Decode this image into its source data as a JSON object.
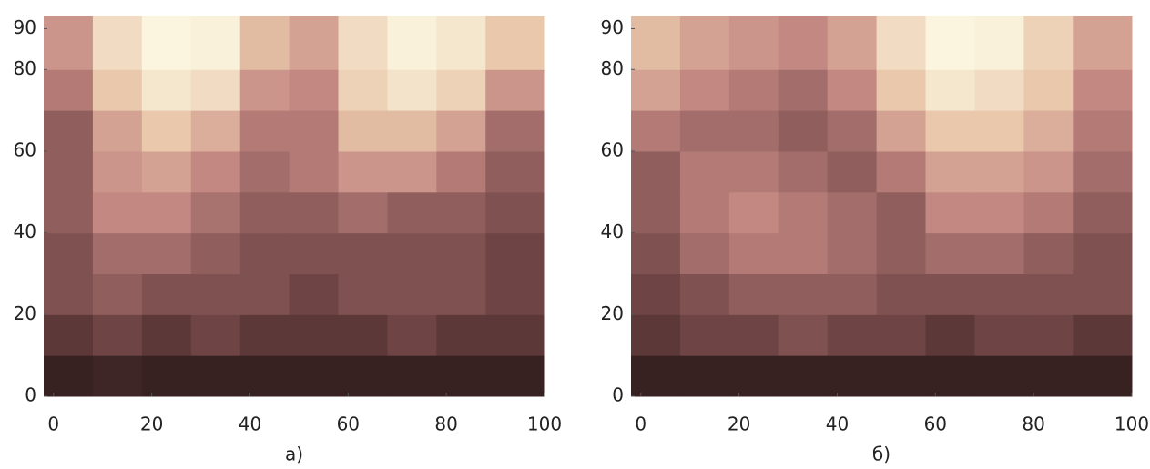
{
  "chart_data": [
    {
      "type": "heatmap",
      "xlabel": "а)",
      "x": [
        3,
        13,
        23,
        33,
        43,
        53,
        63,
        73,
        83,
        93
      ],
      "y": [
        5,
        15,
        25,
        35,
        45,
        55,
        65,
        75,
        85
      ],
      "z": [
        [
          0.1,
          0.12,
          0.1,
          0.1,
          0.1,
          0.1,
          0.1,
          0.1,
          0.1,
          0.1
        ],
        [
          0.2,
          0.25,
          0.2,
          0.25,
          0.2,
          0.2,
          0.2,
          0.25,
          0.2,
          0.2
        ],
        [
          0.3,
          0.35,
          0.3,
          0.3,
          0.3,
          0.25,
          0.3,
          0.3,
          0.3,
          0.25
        ],
        [
          0.3,
          0.4,
          0.4,
          0.35,
          0.3,
          0.3,
          0.3,
          0.3,
          0.3,
          0.25
        ],
        [
          0.35,
          0.5,
          0.5,
          0.42,
          0.35,
          0.35,
          0.4,
          0.35,
          0.35,
          0.3
        ],
        [
          0.35,
          0.55,
          0.6,
          0.5,
          0.4,
          0.45,
          0.55,
          0.55,
          0.45,
          0.35
        ],
        [
          0.35,
          0.6,
          0.75,
          0.65,
          0.45,
          0.45,
          0.7,
          0.7,
          0.6,
          0.4
        ],
        [
          0.45,
          0.75,
          0.9,
          0.85,
          0.55,
          0.5,
          0.8,
          0.88,
          0.8,
          0.55
        ],
        [
          0.55,
          0.85,
          0.97,
          0.95,
          0.7,
          0.6,
          0.85,
          0.95,
          0.9,
          0.75
        ]
      ],
      "colormap": [
        "#140a0a",
        "#6e4444",
        "#c48883",
        "#e9c8ab",
        "#fdfbe6"
      ],
      "xlim": [
        -2,
        100
      ],
      "ylim": [
        0,
        93
      ],
      "xticks": [
        0,
        20,
        40,
        60,
        80,
        100
      ],
      "yticks": [
        0,
        20,
        40,
        60,
        80,
        90
      ]
    },
    {
      "type": "heatmap",
      "xlabel": "б)",
      "x": [
        3,
        13,
        23,
        33,
        43,
        53,
        63,
        73,
        83,
        93
      ],
      "y": [
        5,
        15,
        25,
        35,
        45,
        55,
        65,
        75,
        85
      ],
      "z": [
        [
          0.1,
          0.1,
          0.1,
          0.1,
          0.1,
          0.1,
          0.1,
          0.1,
          0.1,
          0.1
        ],
        [
          0.2,
          0.25,
          0.25,
          0.3,
          0.25,
          0.25,
          0.2,
          0.25,
          0.25,
          0.2
        ],
        [
          0.25,
          0.3,
          0.35,
          0.35,
          0.35,
          0.3,
          0.3,
          0.3,
          0.3,
          0.3
        ],
        [
          0.3,
          0.4,
          0.45,
          0.45,
          0.4,
          0.35,
          0.4,
          0.4,
          0.35,
          0.3
        ],
        [
          0.35,
          0.45,
          0.5,
          0.45,
          0.4,
          0.35,
          0.5,
          0.5,
          0.45,
          0.35
        ],
        [
          0.35,
          0.45,
          0.45,
          0.4,
          0.35,
          0.45,
          0.6,
          0.6,
          0.55,
          0.4
        ],
        [
          0.45,
          0.4,
          0.4,
          0.35,
          0.4,
          0.6,
          0.75,
          0.75,
          0.65,
          0.45
        ],
        [
          0.6,
          0.5,
          0.45,
          0.4,
          0.5,
          0.75,
          0.9,
          0.85,
          0.75,
          0.5
        ],
        [
          0.7,
          0.6,
          0.55,
          0.5,
          0.6,
          0.85,
          0.97,
          0.95,
          0.8,
          0.6
        ]
      ],
      "colormap": [
        "#140a0a",
        "#6e4444",
        "#c48883",
        "#e9c8ab",
        "#fdfbe6"
      ],
      "xlim": [
        -2,
        100
      ],
      "ylim": [
        0,
        93
      ],
      "xticks": [
        0,
        20,
        40,
        60,
        80,
        100
      ],
      "yticks": [
        0,
        20,
        40,
        60,
        80,
        90
      ]
    }
  ]
}
